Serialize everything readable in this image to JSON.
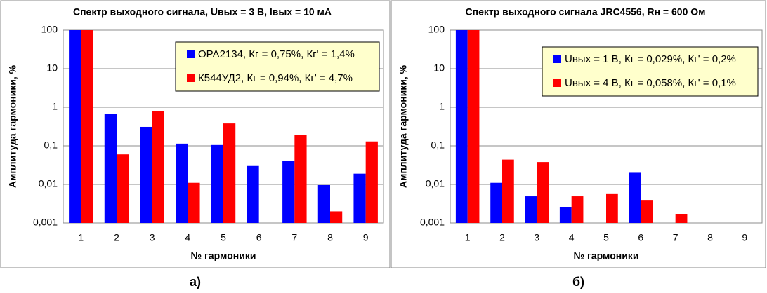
{
  "chart_data": [
    {
      "type": "bar",
      "title": "Спектр выходного сигнала, Uвых = 3 В, Iвых = 10 мА",
      "caption": "а)",
      "x_label": "№ гармоники",
      "y_label": "Амплитуда гармоники, %",
      "categories": [
        1,
        2,
        3,
        4,
        5,
        6,
        7,
        8,
        9
      ],
      "series": [
        {
          "name": "OPA2134, Кг = 0,75%, Кг' = 1,4%",
          "color": "#0000ff",
          "values": [
            100,
            0.66,
            0.31,
            0.114,
            0.105,
            0.03,
            0.04,
            0.0096,
            0.019
          ]
        },
        {
          "name": "К544УД2, Кг = 0,94%, Кг' = 4,7%",
          "color": "#ff0000",
          "values": [
            100,
            0.06,
            0.81,
            0.011,
            0.38,
            null,
            0.195,
            0.002,
            0.13
          ]
        }
      ],
      "log_scale": true,
      "ylim": [
        0.001,
        100
      ],
      "yticks": [
        {
          "value": 0.001,
          "label": "0,001"
        },
        {
          "value": 0.01,
          "label": "0,01"
        },
        {
          "value": 0.1,
          "label": "0,1"
        },
        1,
        10,
        100
      ],
      "grid": true,
      "legend": "upper right"
    },
    {
      "type": "bar",
      "title": "Спектр выходного сигнала JRC4556, Rн = 600 Ом",
      "caption": "б)",
      "x_label": "№ гармоники",
      "y_label": "Амплитуда гармоники, %",
      "categories": [
        1,
        2,
        3,
        4,
        5,
        6,
        7,
        8,
        9
      ],
      "series": [
        {
          "name": "Uвых = 1 В, Кг = 0,029%, Кг' = 0,2%",
          "color": "#0000ff",
          "values": [
            100,
            0.011,
            0.0049,
            0.0026,
            null,
            0.02,
            null,
            null,
            null
          ]
        },
        {
          "name": "Uвых = 4 В, Кг = 0,058%, Кг' = 0,1%",
          "color": "#ff0000",
          "values": [
            100,
            0.044,
            0.038,
            0.0049,
            0.0056,
            0.0038,
            0.0017,
            null,
            null
          ]
        }
      ],
      "log_scale": true,
      "ylim": [
        0.001,
        100
      ],
      "yticks": [
        {
          "value": 0.001,
          "label": "0,001"
        },
        {
          "value": 0.01,
          "label": "0,01"
        },
        {
          "value": 0.1,
          "label": "0,1"
        },
        1,
        10,
        100
      ],
      "grid": true,
      "legend": "upper right"
    }
  ]
}
